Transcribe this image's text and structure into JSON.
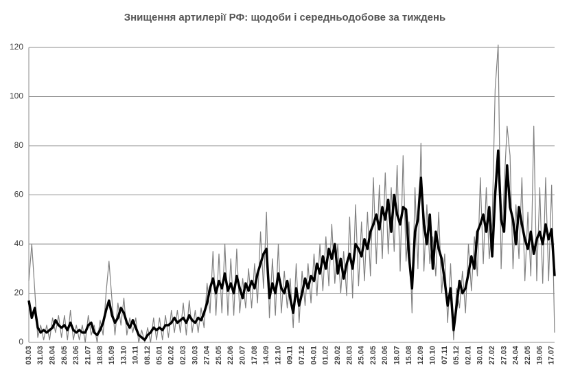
{
  "chart_data": {
    "type": "line",
    "title": "Знищення артилерії  РФ: щодоби і середньодобове за тиждень",
    "categories": [
      "03.03",
      null,
      null,
      null,
      "31.03",
      null,
      null,
      null,
      "28.04",
      null,
      null,
      null,
      "26.05",
      null,
      null,
      null,
      "23.06",
      null,
      null,
      null,
      "21.07",
      null,
      null,
      null,
      "18.08",
      null,
      null,
      null,
      "15.09",
      null,
      null,
      null,
      "13.10",
      null,
      null,
      null,
      "10.11",
      null,
      null,
      null,
      "08.12",
      null,
      null,
      null,
      "05.01",
      null,
      null,
      null,
      "02.02",
      null,
      null,
      null,
      "02.03",
      null,
      null,
      null,
      "30.03",
      null,
      null,
      null,
      "27.04",
      null,
      null,
      null,
      "25.05",
      null,
      null,
      null,
      "22.06",
      null,
      null,
      null,
      "20.07",
      null,
      null,
      null,
      "17.08",
      null,
      null,
      null,
      "14.09",
      null,
      null,
      null,
      "12.10",
      null,
      null,
      null,
      "09.11",
      null,
      null,
      null,
      "07.12",
      null,
      null,
      null,
      "04.01",
      null,
      null,
      null,
      "01.02",
      null,
      null,
      null,
      "29.02",
      null,
      null,
      null,
      "28.03",
      null,
      null,
      null,
      "25.04",
      null,
      null,
      null,
      "23.05",
      null,
      null,
      null,
      "20.06",
      null,
      null,
      null,
      "18.07",
      null,
      null,
      null,
      "15.08",
      null,
      null,
      null,
      "12.09",
      null,
      null,
      null,
      "10.10",
      null,
      null,
      null,
      "07.11",
      null,
      null,
      null,
      "05.12",
      null,
      null,
      null,
      "02.01",
      null,
      null,
      null,
      "30.01",
      null,
      null,
      null,
      "27.02",
      null,
      null,
      null,
      "27.03",
      null,
      null,
      null,
      "24.04",
      null,
      null,
      null,
      "22.05",
      null,
      null,
      null,
      "19.06",
      null,
      null,
      null,
      "17.07",
      null
    ],
    "series": [
      {
        "color": "#808080",
        "width": 1.2,
        "values": [
          25,
          40,
          21,
          2,
          7,
          1,
          7,
          1,
          10,
          4,
          11,
          2,
          11,
          1,
          13,
          1,
          7,
          1,
          7,
          0,
          11,
          3,
          7,
          0,
          9,
          3,
          20,
          33,
          17,
          3,
          16,
          7,
          18,
          3,
          10,
          4,
          10,
          0,
          5,
          0,
          6,
          0,
          10,
          1,
          10,
          1,
          11,
          2,
          13,
          4,
          13,
          4,
          16,
          3,
          17,
          4,
          13,
          4,
          14,
          6,
          24,
          12,
          37,
          11,
          36,
          12,
          40,
          11,
          34,
          11,
          38,
          12,
          26,
          14,
          30,
          14,
          32,
          16,
          45,
          22,
          53,
          10,
          34,
          11,
          40,
          12,
          29,
          14,
          26,
          6,
          32,
          8,
          29,
          15,
          32,
          16,
          36,
          19,
          40,
          21,
          43,
          23,
          48,
          24,
          40,
          20,
          37,
          19,
          51,
          18,
          56,
          23,
          49,
          25,
          53,
          27,
          67,
          32,
          64,
          34,
          69,
          36,
          63,
          37,
          72,
          29,
          76,
          33,
          49,
          12,
          63,
          30,
          81,
          29,
          56,
          32,
          43,
          27,
          53,
          20,
          36,
          8,
          32,
          1,
          22,
          14,
          29,
          12,
          40,
          21,
          43,
          27,
          67,
          32,
          63,
          34,
          49,
          103,
          121,
          30,
          63,
          88,
          76,
          30,
          56,
          34,
          67,
          25,
          53,
          27,
          88,
          25,
          63,
          24,
          67,
          25,
          64,
          4
        ]
      },
      {
        "color": "#000000",
        "width": 3.5,
        "values": [
          17,
          10,
          14,
          6,
          4,
          5,
          4,
          5,
          6,
          9,
          7,
          6,
          7,
          5,
          8,
          5,
          4,
          5,
          4,
          4,
          7,
          8,
          4,
          3,
          5,
          8,
          13,
          17,
          11,
          8,
          10,
          14,
          12,
          8,
          6,
          9,
          6,
          3,
          2,
          1,
          3,
          4,
          6,
          5,
          6,
          5,
          7,
          7,
          8,
          10,
          8,
          9,
          10,
          8,
          11,
          9,
          8,
          10,
          9,
          12,
          16,
          22,
          26,
          20,
          25,
          22,
          28,
          21,
          24,
          20,
          27,
          22,
          18,
          24,
          21,
          25,
          22,
          28,
          32,
          36,
          38,
          18,
          24,
          20,
          28,
          22,
          20,
          25,
          18,
          12,
          22,
          15,
          20,
          26,
          22,
          27,
          25,
          32,
          28,
          35,
          30,
          38,
          34,
          40,
          28,
          34,
          26,
          32,
          36,
          30,
          40,
          38,
          35,
          42,
          38,
          45,
          48,
          52,
          46,
          55,
          50,
          58,
          45,
          60,
          52,
          48,
          55,
          54,
          35,
          22,
          45,
          50,
          67,
          48,
          40,
          52,
          30,
          45,
          38,
          34,
          25,
          15,
          22,
          5,
          15,
          25,
          20,
          22,
          28,
          35,
          30,
          45,
          48,
          52,
          45,
          55,
          35,
          60,
          78,
          50,
          45,
          72,
          55,
          50,
          40,
          55,
          48,
          42,
          38,
          45,
          36,
          42,
          45,
          40,
          48,
          42,
          46,
          27
        ]
      }
    ],
    "ylim": [
      0,
      125
    ],
    "yticks": [
      0,
      20,
      40,
      60,
      80,
      100,
      120
    ],
    "grid": true
  }
}
